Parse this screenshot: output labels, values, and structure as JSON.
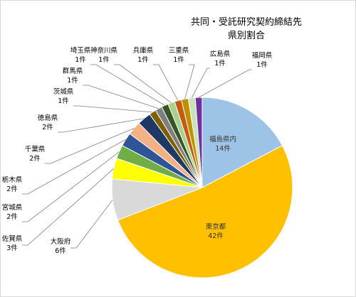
{
  "chart_data": {
    "type": "pie",
    "title_lines": [
      "共同・受託研究契約締結先",
      "県別割合"
    ],
    "start_angle_deg": 0,
    "direction": "clockwise",
    "legend": "none",
    "slices": [
      {
        "label": "福島県内",
        "value": "14件",
        "count": 14,
        "color": "#9dc3e6"
      },
      {
        "label": "東京都",
        "value": "42件",
        "count": 42,
        "color": "#ffc000"
      },
      {
        "label": "大阪府",
        "value": "6件",
        "count": 6,
        "color": "#d9d9d9"
      },
      {
        "label": "佐賀県",
        "value": "3件",
        "count": 3,
        "color": "#ffff00"
      },
      {
        "label": "宮城県",
        "value": "2件",
        "count": 2,
        "color": "#70ad47"
      },
      {
        "label": "栃木県",
        "value": "2件",
        "count": 2,
        "color": "#2f5597"
      },
      {
        "label": "千葉県",
        "value": "2件",
        "count": 2,
        "color": "#f4b183"
      },
      {
        "label": "徳島県",
        "value": "2件",
        "count": 2,
        "color": "#203864"
      },
      {
        "label": "茨城県",
        "value": "1件",
        "count": 1,
        "color": "#7f6000"
      },
      {
        "label": "群馬県",
        "value": "1件",
        "count": 1,
        "color": "#7f7f7f"
      },
      {
        "label": "埼玉県",
        "value": "1件",
        "count": 1,
        "color": "#375623"
      },
      {
        "label": "神奈川県",
        "value": "1件",
        "count": 1,
        "color": "#a9d18e"
      },
      {
        "label": "兵庫県",
        "value": "1件",
        "count": 1,
        "color": "#c55a11"
      },
      {
        "label": "三重県",
        "value": "1件",
        "count": 1,
        "color": "#bf9000"
      },
      {
        "label": "広島県",
        "value": "1件",
        "count": 1,
        "color": "#c9e3b8"
      },
      {
        "label": "福岡県",
        "value": "1件",
        "count": 1,
        "color": "#7030a0"
      }
    ]
  }
}
